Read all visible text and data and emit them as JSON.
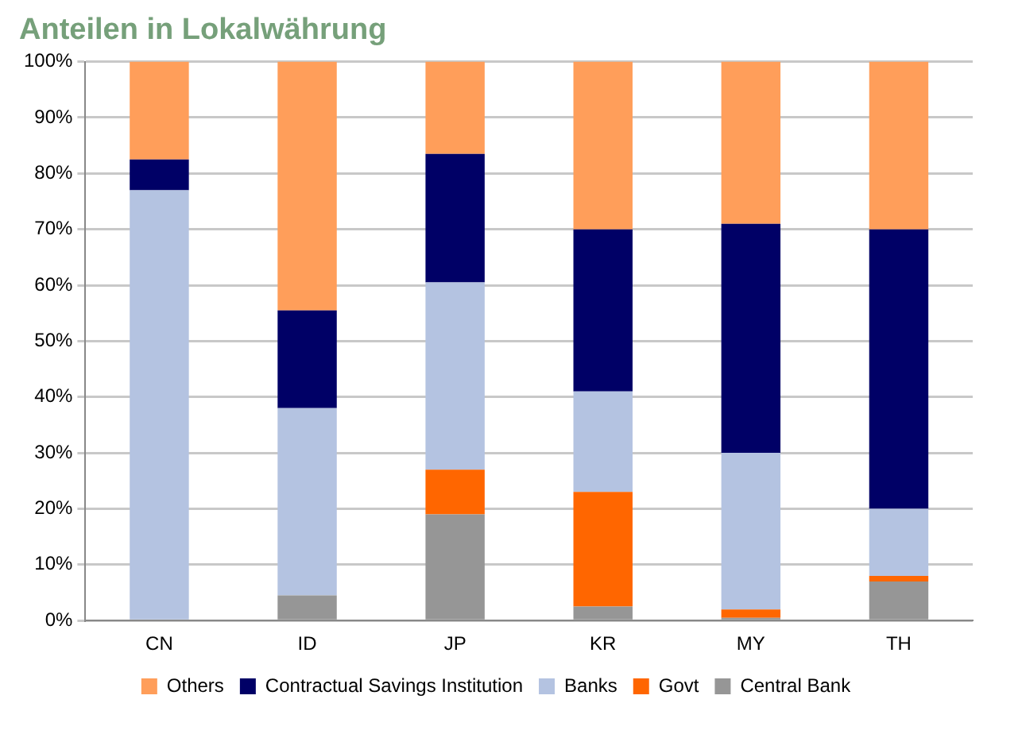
{
  "chart_data": {
    "type": "bar",
    "title": "Anteilen in Lokalwährung",
    "stacked": true,
    "categories": [
      "CN",
      "ID",
      "JP",
      "KR",
      "MY",
      "TH"
    ],
    "series": [
      {
        "name": "Central Bank",
        "color": "#969696",
        "values": [
          0,
          4.5,
          19,
          2.5,
          0.5,
          7
        ]
      },
      {
        "name": "Govt",
        "color": "#ff6600",
        "values": [
          0,
          0,
          8,
          20.5,
          1.5,
          1
        ]
      },
      {
        "name": "Banks",
        "color": "#b4c3e1",
        "values": [
          77,
          33.5,
          33.5,
          18,
          28,
          12
        ]
      },
      {
        "name": "Contractual Savings Institution",
        "color": "#000066",
        "values": [
          5.5,
          17.5,
          23,
          29,
          41,
          50
        ]
      },
      {
        "name": "Others",
        "color": "#ff9e5a",
        "values": [
          17.5,
          44.5,
          16.5,
          30,
          29,
          30
        ]
      }
    ],
    "ylim": [
      0,
      100
    ],
    "yticks": [
      {
        "value": 0,
        "label": "0%"
      },
      {
        "value": 10,
        "label": "10%"
      },
      {
        "value": 20,
        "label": "20%"
      },
      {
        "value": 30,
        "label": "30%"
      },
      {
        "value": 40,
        "label": "40%"
      },
      {
        "value": 50,
        "label": "50%"
      },
      {
        "value": 60,
        "label": "60%"
      },
      {
        "value": 70,
        "label": "70%"
      },
      {
        "value": 80,
        "label": "80%"
      },
      {
        "value": 90,
        "label": "90%"
      },
      {
        "value": 100,
        "label": "100%"
      }
    ],
    "grid": "y",
    "legend": "bottom"
  }
}
